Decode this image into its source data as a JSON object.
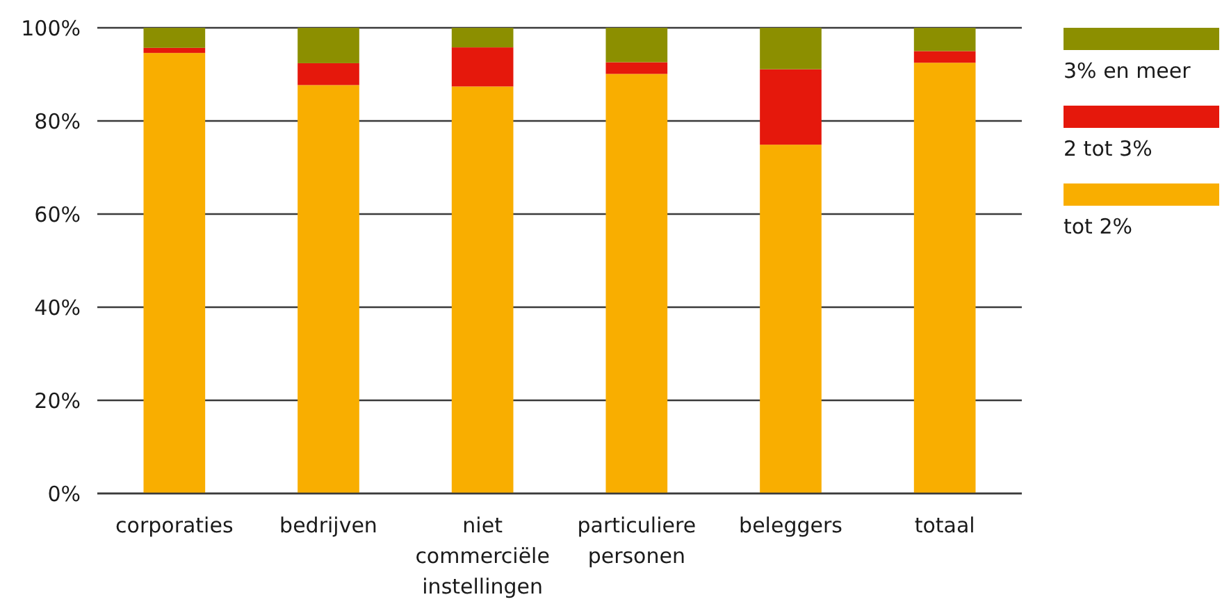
{
  "chart_data": {
    "type": "bar",
    "stacked": true,
    "categories": [
      "corporaties",
      "bedrijven",
      "niet commerciële instellingen",
      "particuliere personen",
      "beleggers",
      "totaal"
    ],
    "series": [
      {
        "name": "tot 2%",
        "color": "#f9ae00",
        "values": [
          94.6,
          87.7,
          87.4,
          90.1,
          74.9,
          92.5
        ]
      },
      {
        "name": "2 tot 3%",
        "color": "#e5180c",
        "values": [
          1.1,
          4.7,
          8.4,
          2.5,
          16.2,
          2.5
        ]
      },
      {
        "name": "3% en meer",
        "color": "#8c8f00",
        "values": [
          4.3,
          7.6,
          4.2,
          7.4,
          8.9,
          5.0
        ]
      }
    ],
    "ylim": [
      0,
      100
    ],
    "yticks": [
      {
        "value": 0,
        "label": "0%"
      },
      {
        "value": 20,
        "label": "20%"
      },
      {
        "value": 40,
        "label": "40%"
      },
      {
        "value": 60,
        "label": "60%"
      },
      {
        "value": 80,
        "label": "80%"
      },
      {
        "value": 100,
        "label": "100%"
      }
    ],
    "grid": "y",
    "legend": "top right"
  }
}
